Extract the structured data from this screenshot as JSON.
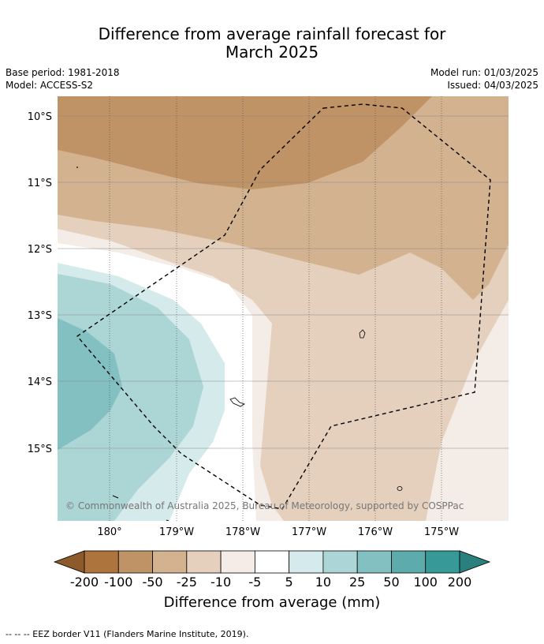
{
  "title_line1": "Difference from average rainfall forecast for",
  "title_line2": "March 2025",
  "left_meta": {
    "base_period": "Base period: 1981-2018",
    "model": "Model: ACCESS-S2"
  },
  "right_meta": {
    "model_run": "Model run: 01/03/2025",
    "issued": "Issued: 04/03/2025"
  },
  "lat_labels": [
    "10°S",
    "11°S",
    "12°S",
    "13°S",
    "14°S",
    "15°S"
  ],
  "lon_labels": [
    "180°",
    "179°W",
    "178°W",
    "177°W",
    "176°W",
    "175°W"
  ],
  "copyright": "© Commonwealth of Australia 2025, Bureau of Meteorology, supported by COSPPac",
  "colorbar": {
    "ticks": [
      "-200",
      "-100",
      "-50",
      "-25",
      "-10",
      "-5",
      "5",
      "10",
      "25",
      "50",
      "100",
      "200"
    ],
    "colors": [
      "#8c5a2b",
      "#ad743e",
      "#c09366",
      "#d3b290",
      "#e4d0bd",
      "#f4ece6",
      "#ffffff",
      "#d5eaea",
      "#acd5d6",
      "#83c0c1",
      "#5eabac",
      "#379a99",
      "#2b7f7d"
    ],
    "label": "Difference from average (mm)"
  },
  "legend_text": "-- -- -- EEZ border V11 (Flanders Marine Institute, 2019)."
}
